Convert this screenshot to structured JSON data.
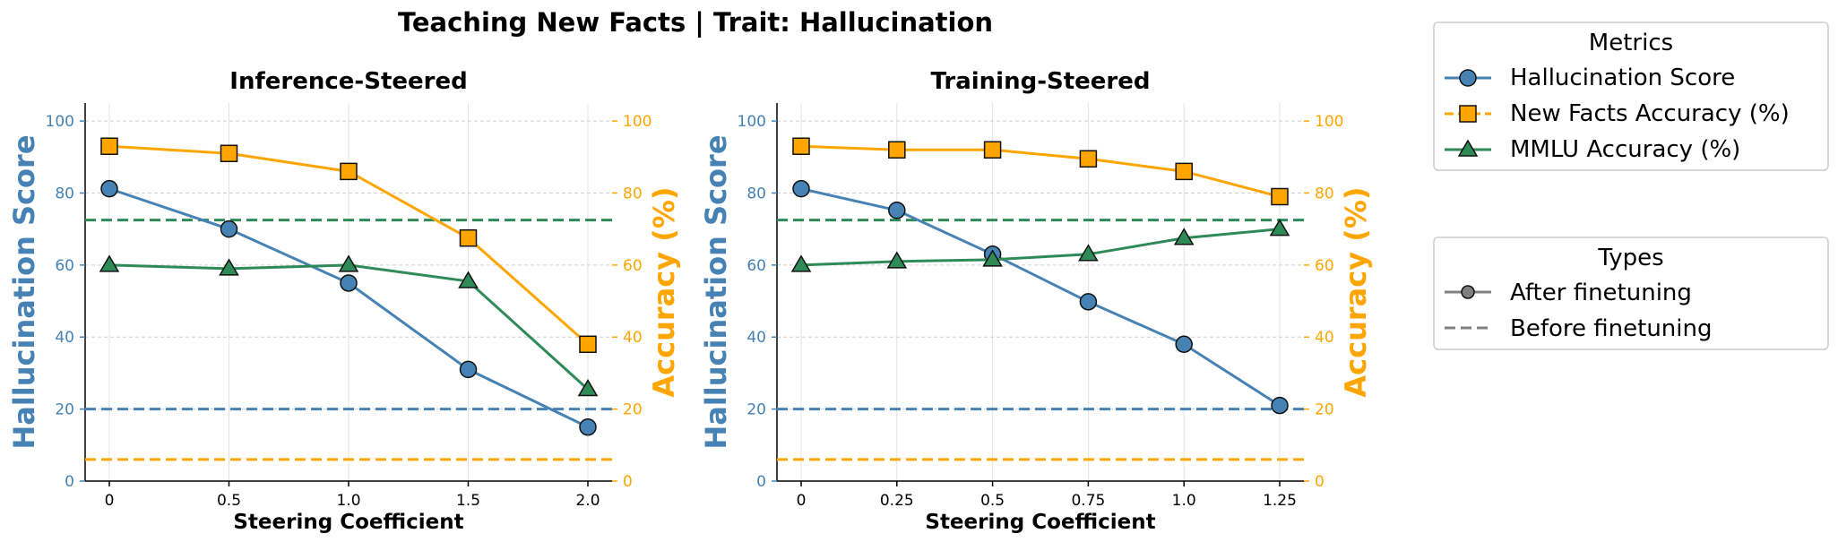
{
  "figure_title": "Teaching New Facts | Trait: Hallucination",
  "colors": {
    "hallucination": "#4682B4",
    "new_facts": "#FFA500",
    "mmlu": "#2E8B57",
    "neutral": "#808080"
  },
  "chart_data": [
    {
      "type": "line",
      "title": "Inference-Steered",
      "xlabel": "Steering Coefficient",
      "ylabel_left": "Hallucination Score",
      "ylabel_right": "Accuracy (%)",
      "ylim_left": [
        0,
        105
      ],
      "ylim_right": [
        0,
        105
      ],
      "yticks": [
        "0",
        "20",
        "40",
        "60",
        "80",
        "100"
      ],
      "categories": [
        "0",
        "0.5",
        "1.0",
        "1.5",
        "2.0"
      ],
      "series": [
        {
          "name": "Hallucination Score",
          "axis": "left",
          "marker": "circle",
          "values": [
            81.2,
            70,
            55,
            31,
            15
          ]
        },
        {
          "name": "New Facts Accuracy (%)",
          "axis": "right",
          "marker": "square",
          "values": [
            93,
            91,
            86,
            67.5,
            38
          ]
        },
        {
          "name": "MMLU Accuracy (%)",
          "axis": "right",
          "marker": "triangle",
          "values": [
            60,
            59,
            60,
            55.5,
            25.5
          ]
        }
      ],
      "baselines": [
        {
          "name": "Hallucination Score",
          "axis": "left",
          "value": 20
        },
        {
          "name": "New Facts Accuracy (%)",
          "axis": "right",
          "value": 6
        },
        {
          "name": "MMLU Accuracy (%)",
          "axis": "right",
          "value": 72.5
        }
      ]
    },
    {
      "type": "line",
      "title": "Training-Steered",
      "xlabel": "Steering Coefficient",
      "ylabel_left": "Hallucination Score",
      "ylabel_right": "Accuracy (%)",
      "ylim_left": [
        0,
        105
      ],
      "ylim_right": [
        0,
        105
      ],
      "yticks": [
        "0",
        "20",
        "40",
        "60",
        "80",
        "100"
      ],
      "categories": [
        "0",
        "0.25",
        "0.5",
        "0.75",
        "1.0",
        "1.25"
      ],
      "series": [
        {
          "name": "Hallucination Score",
          "axis": "left",
          "marker": "circle",
          "values": [
            81.2,
            75.2,
            63,
            49.8,
            38,
            21
          ]
        },
        {
          "name": "New Facts Accuracy (%)",
          "axis": "right",
          "marker": "square",
          "values": [
            93,
            92,
            92,
            89.5,
            86,
            79
          ]
        },
        {
          "name": "MMLU Accuracy (%)",
          "axis": "right",
          "marker": "triangle",
          "values": [
            60,
            61,
            61.5,
            63,
            67.5,
            70
          ]
        }
      ],
      "baselines": [
        {
          "name": "Hallucination Score",
          "axis": "left",
          "value": 20
        },
        {
          "name": "New Facts Accuracy (%)",
          "axis": "right",
          "value": 6
        },
        {
          "name": "MMLU Accuracy (%)",
          "axis": "right",
          "value": 72.5
        }
      ]
    }
  ],
  "legend_metrics": {
    "title": "Metrics",
    "items": [
      "Hallucination Score",
      "New Facts Accuracy (%)",
      "MMLU Accuracy (%)"
    ]
  },
  "legend_types": {
    "title": "Types",
    "items": [
      "After finetuning",
      "Before finetuning"
    ]
  }
}
